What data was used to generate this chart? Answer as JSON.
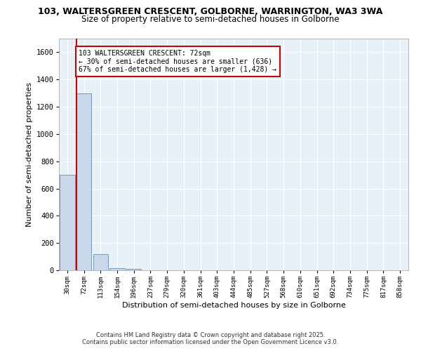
{
  "title_line1": "103, WALTERSGREEN CRESCENT, GOLBORNE, WARRINGTON, WA3 3WA",
  "title_line2": "Size of property relative to semi-detached houses in Golborne",
  "xlabel": "Distribution of semi-detached houses by size in Golborne",
  "ylabel": "Number of semi-detached properties",
  "categories": [
    "30sqm",
    "72sqm",
    "113sqm",
    "154sqm",
    "196sqm",
    "237sqm",
    "279sqm",
    "320sqm",
    "361sqm",
    "403sqm",
    "444sqm",
    "485sqm",
    "527sqm",
    "568sqm",
    "610sqm",
    "651sqm",
    "692sqm",
    "734sqm",
    "775sqm",
    "817sqm",
    "858sqm"
  ],
  "values": [
    700,
    1300,
    120,
    15,
    10,
    0,
    0,
    0,
    0,
    0,
    0,
    0,
    0,
    0,
    0,
    0,
    0,
    0,
    0,
    0,
    0
  ],
  "bar_color": "#c8d8ea",
  "bar_edgecolor": "#6090b0",
  "red_line_bar_index": 1,
  "annotation_title": "103 WALTERSGREEN CRESCENT: 72sqm",
  "annotation_line1": "← 30% of semi-detached houses are smaller (636)",
  "annotation_line2": "67% of semi-detached houses are larger (1,428) →",
  "annotation_box_color": "#ffffff",
  "annotation_border_color": "#cc0000",
  "footer_line1": "Contains HM Land Registry data © Crown copyright and database right 2025.",
  "footer_line2": "Contains public sector information licensed under the Open Government Licence v3.0.",
  "ylim": [
    0,
    1700
  ],
  "yticks": [
    0,
    200,
    400,
    600,
    800,
    1000,
    1200,
    1400,
    1600
  ],
  "bg_color": "#ffffff",
  "plot_bg_color": "#e8f0f8",
  "grid_color": "#ffffff"
}
